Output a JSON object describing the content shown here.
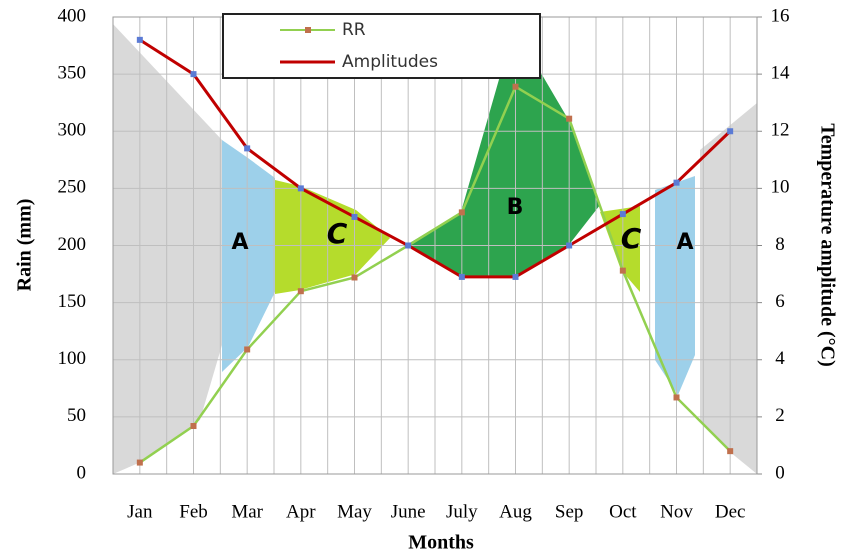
{
  "chart_data": {
    "type": "line",
    "x_label": "Months",
    "y_label": "Rain (mm)",
    "y2_label": "Temperature amplitude (°C)",
    "categories": [
      "Jan",
      "Feb",
      "Mar",
      "Apr",
      "May",
      "June",
      "July",
      "Aug",
      "Sep",
      "Oct",
      "Nov",
      "Dec"
    ],
    "series": [
      {
        "name": "RR",
        "color": "#92d050",
        "marker_color": "#c0704d",
        "values": [
          10,
          42,
          109,
          160,
          172,
          200,
          229,
          339,
          311,
          178,
          67,
          20
        ]
      },
      {
        "name": "Amplitudes",
        "color": "#c00000",
        "marker_color": "#5b7bd5",
        "axis": "y2",
        "values": [
          15.2,
          14,
          11.4,
          10,
          9,
          8,
          6.9,
          6.9,
          8,
          9.1,
          10.2,
          12
        ]
      }
    ],
    "ylim": [
      0,
      400
    ],
    "yticks": [
      0,
      50,
      100,
      150,
      200,
      250,
      300,
      350,
      400
    ],
    "y2lim": [
      0,
      16
    ],
    "y2ticks": [
      0,
      2,
      4,
      6,
      8,
      10,
      12,
      14,
      16
    ],
    "grid": true,
    "annotations": [
      "A",
      "C",
      "B",
      "C",
      "A"
    ]
  }
}
